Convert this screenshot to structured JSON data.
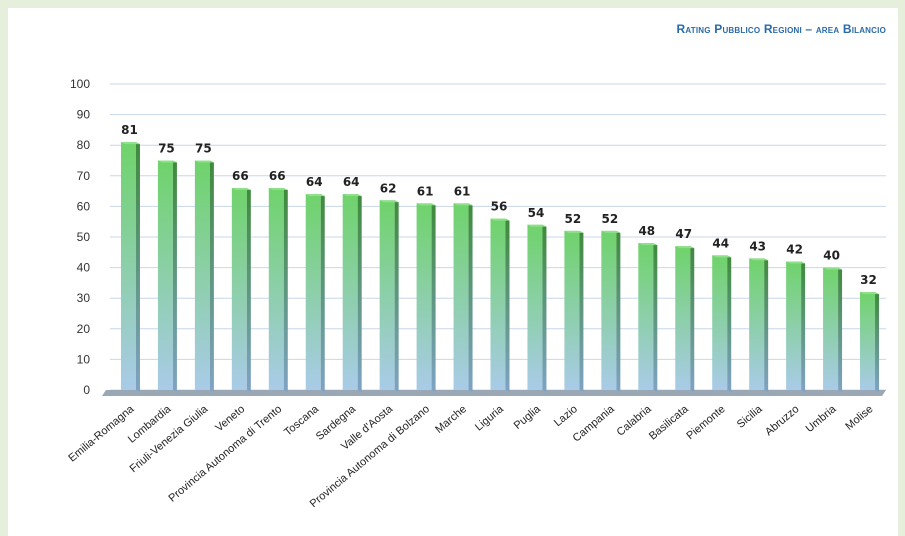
{
  "chart_data": {
    "type": "bar",
    "title": "Rating Pubblico Regioni – area Bilancio",
    "xlabel": "",
    "ylabel": "",
    "ylim": [
      0,
      100
    ],
    "yticks": [
      0,
      10,
      20,
      30,
      40,
      50,
      60,
      70,
      80,
      90,
      100
    ],
    "grid": true,
    "legend": "none",
    "categories": [
      "Emilia-Romagna",
      "Lombardia",
      "Friuli-Venezia Giulia",
      "Veneto",
      "Provincia Autonoma di Trento",
      "Toscana",
      "Sardegna",
      "Valle d'Aosta",
      "Provincia Autonoma di Bolzano",
      "Marche",
      "Liguria",
      "Puglia",
      "Lazio",
      "Campania",
      "Calabria",
      "Basilicata",
      "Piemonte",
      "Sicilia",
      "Abruzzo",
      "Umbria",
      "Molise"
    ],
    "values": [
      81,
      75,
      75,
      66,
      66,
      64,
      64,
      62,
      61,
      61,
      56,
      54,
      52,
      52,
      48,
      47,
      44,
      43,
      42,
      40,
      32
    ],
    "colors": {
      "bar_top": "#6fd36a",
      "bar_bottom": "#a9cbe8",
      "bar_side": "#4f8f4a",
      "grid": "#c8d7ec",
      "floor": "#9aa7b4",
      "title": "#2a6aa8"
    }
  }
}
